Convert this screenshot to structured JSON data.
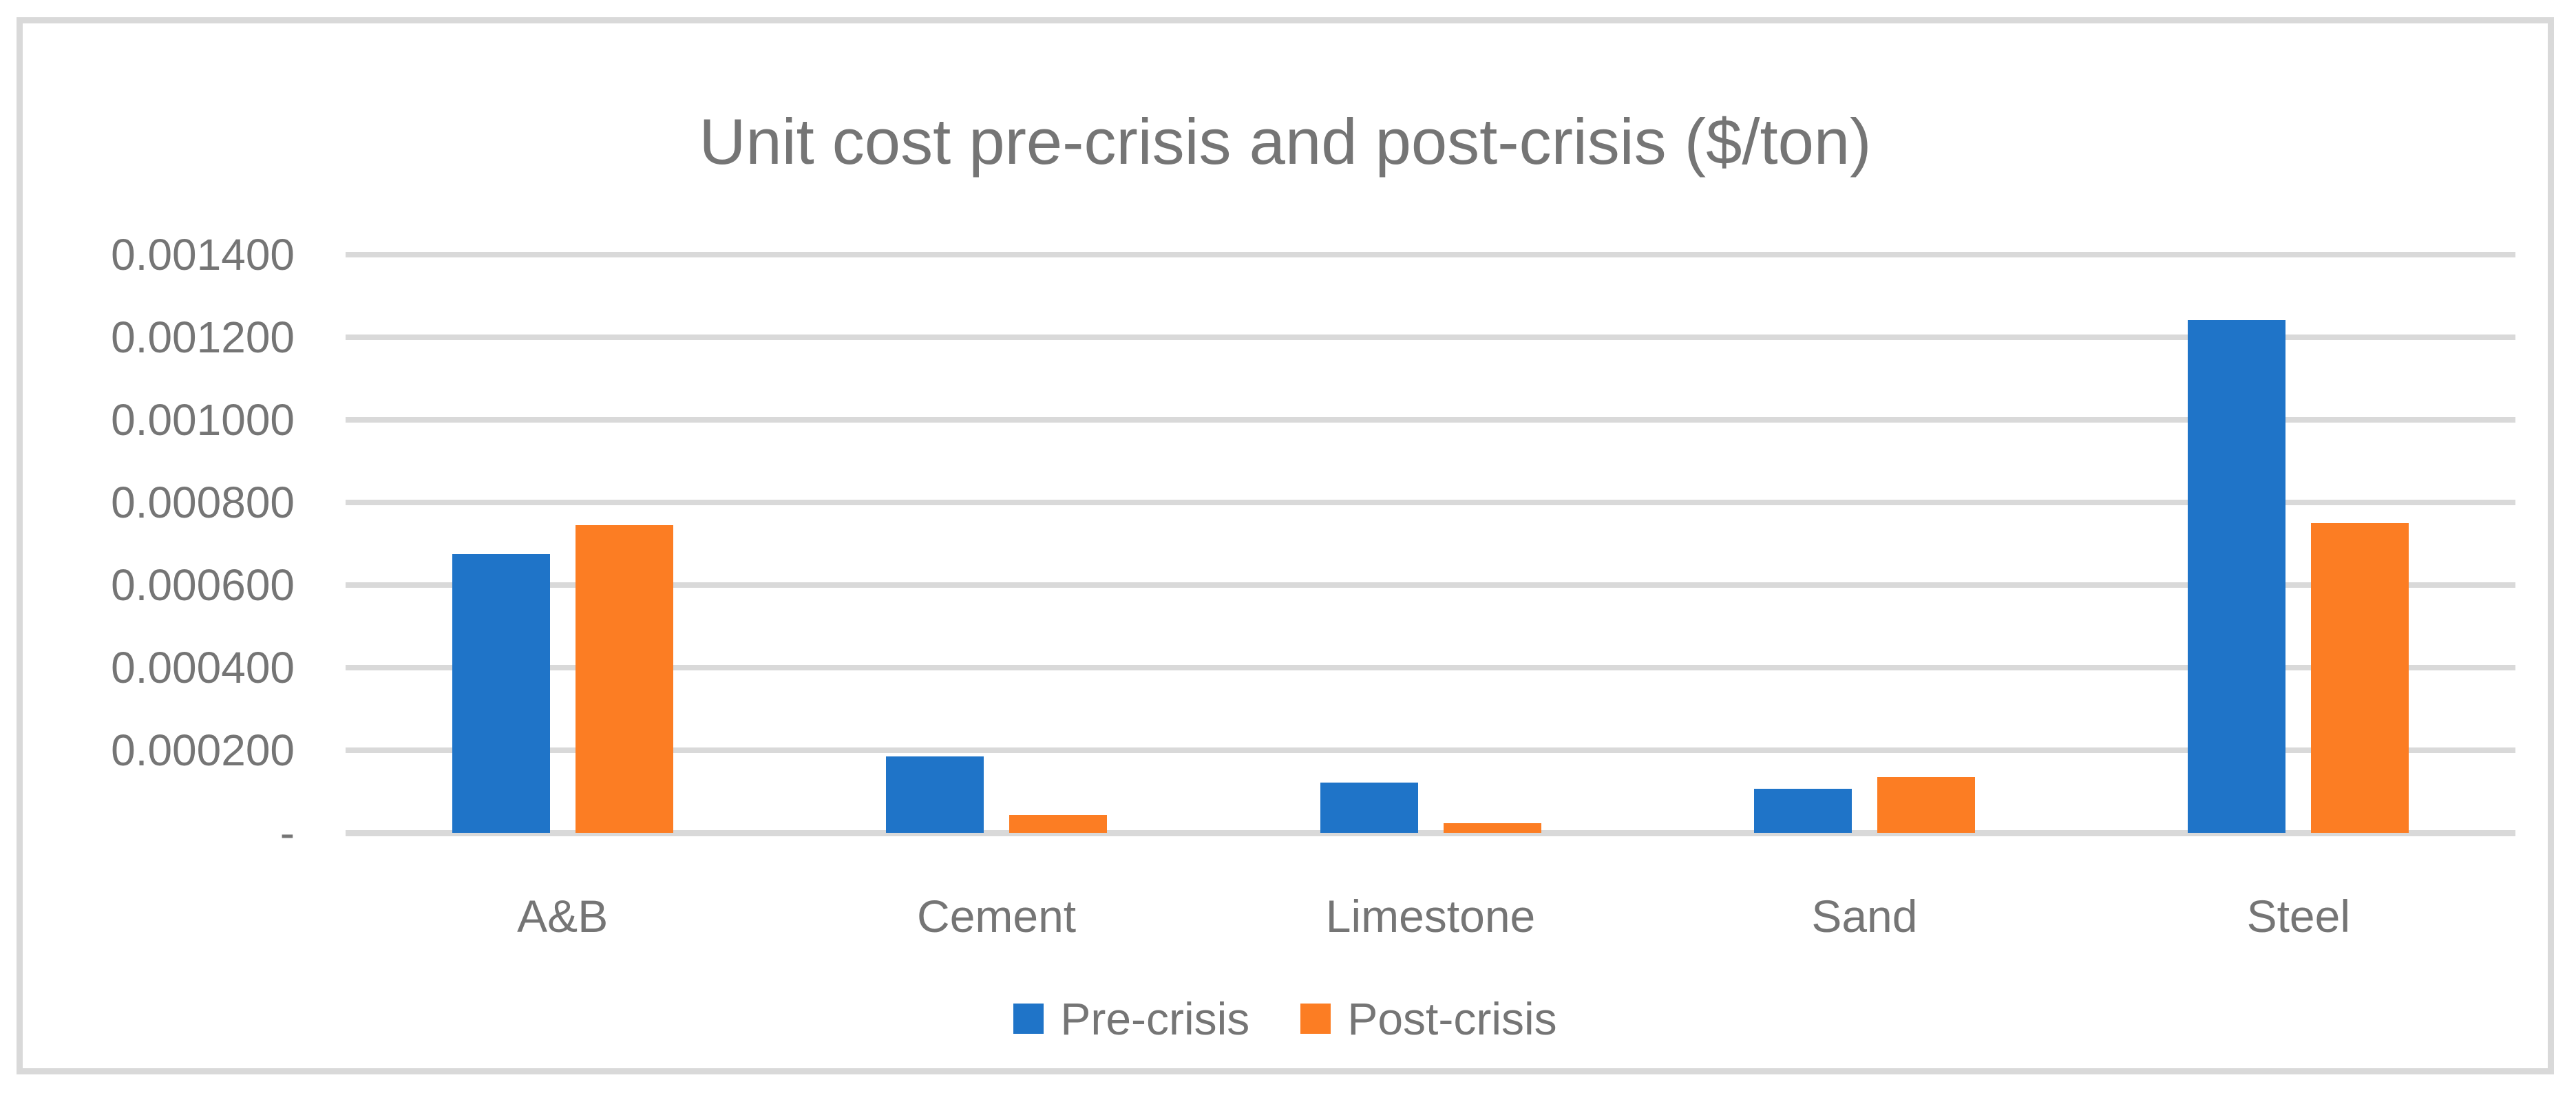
{
  "chart_data": {
    "type": "bar",
    "title": "Unit cost pre-crisis and post-crisis ($/ton)",
    "xlabel": "",
    "ylabel": "",
    "categories": [
      "A&B",
      "Cement",
      "Limestone",
      "Sand",
      "Steel"
    ],
    "series": [
      {
        "name": "Pre-crisis",
        "color": "#1f74c8",
        "values": [
          0.000675,
          0.000185,
          0.000122,
          0.000107,
          0.001242
        ]
      },
      {
        "name": "Post-crisis",
        "color": "#fc7d23",
        "values": [
          0.000745,
          4.4e-05,
          2.4e-05,
          0.000135,
          0.00075
        ]
      }
    ],
    "ylim": [
      0,
      0.0014
    ],
    "ytick_step": 0.0002,
    "ytick_labels_top_to_bottom": [
      "0.001400",
      "0.001200",
      "0.001000",
      "0.000800",
      "0.000600",
      "0.000400",
      "0.000200",
      "-"
    ],
    "grid": true,
    "legend_position": "bottom",
    "colors": {
      "gridline": "#d9d9d9",
      "frame_border": "#d9d9d9",
      "text": "#757575",
      "background": "#ffffff"
    }
  }
}
